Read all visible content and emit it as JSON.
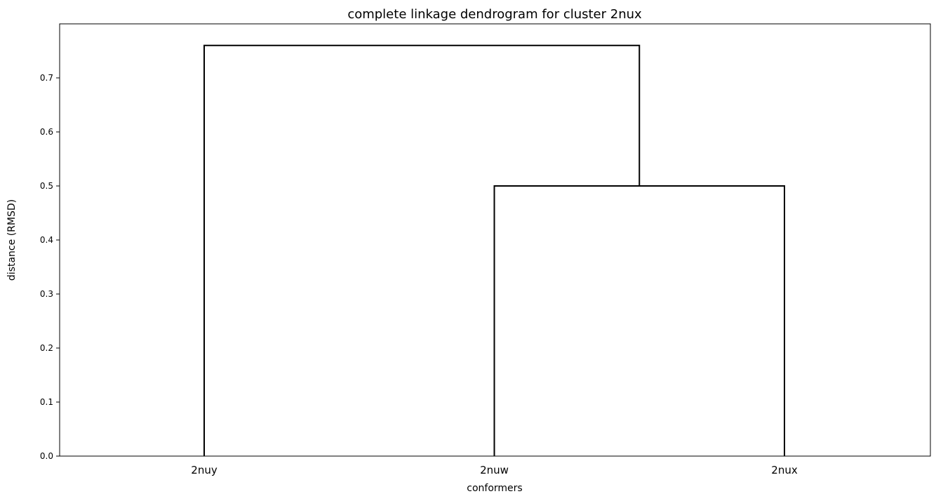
{
  "chart_data": {
    "type": "dendrogram",
    "title": "complete linkage dendrogram for cluster 2nux",
    "xlabel": "conformers",
    "ylabel": "distance (RMSD)",
    "leaves": [
      "2nuy",
      "2nuw",
      "2nux"
    ],
    "merges": [
      {
        "left": "2nuw",
        "right": "2nux",
        "height": 0.5
      },
      {
        "left": "2nuy",
        "right": "2nuw+2nux",
        "height": 0.76
      }
    ],
    "ylim": [
      0,
      0.8
    ],
    "yticks": [
      "0.0",
      "0.1",
      "0.2",
      "0.3",
      "0.4",
      "0.5",
      "0.6",
      "0.7"
    ],
    "grid": false,
    "line_color": "#000000"
  }
}
